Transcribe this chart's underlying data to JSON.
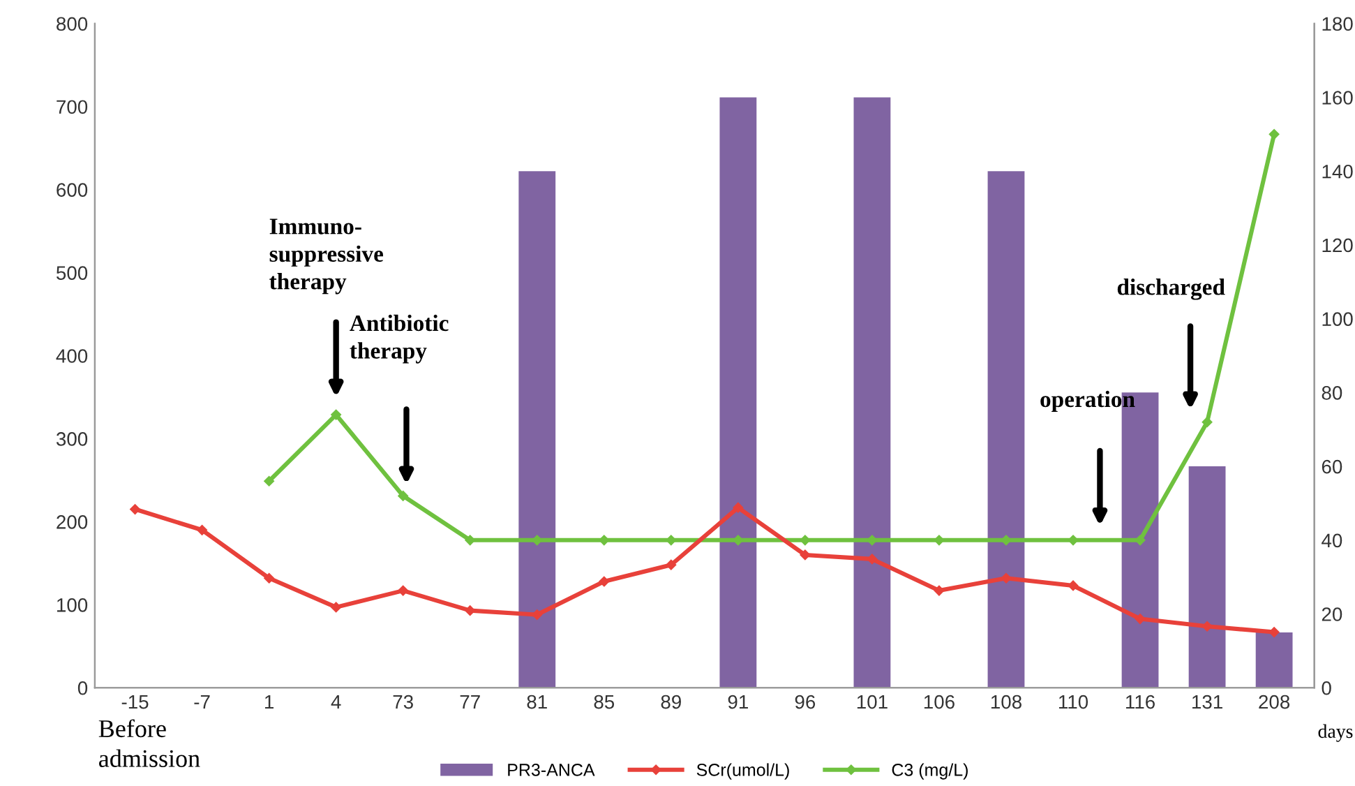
{
  "chart_data": {
    "type": "bar",
    "categories": [
      "-15",
      "-7",
      "1",
      "4",
      "73",
      "77",
      "81",
      "85",
      "89",
      "91",
      "96",
      "101",
      "106",
      "108",
      "110",
      "116",
      "131",
      "208"
    ],
    "xlabel": "days",
    "series": [
      {
        "name": "PR3-ANCA",
        "axis": "y2",
        "color": "#8064a2",
        "values": [
          null,
          null,
          null,
          null,
          null,
          null,
          140,
          null,
          null,
          160,
          null,
          160,
          null,
          140,
          null,
          80,
          60,
          15
        ]
      },
      {
        "name": "SCr(umol/L)",
        "type": "line",
        "color": "#e8413a",
        "values": [
          215,
          190,
          132,
          97,
          117,
          93,
          88,
          128,
          148,
          217,
          160,
          155,
          117,
          132,
          123,
          83,
          74,
          67
        ]
      },
      {
        "name": "C3 (mg/L)",
        "type": "line",
        "axis": "y2",
        "color": "#6fc13f",
        "values": [
          null,
          null,
          56,
          74,
          52,
          40,
          40,
          40,
          40,
          40,
          40,
          40,
          40,
          40,
          40,
          40,
          72,
          150
        ]
      }
    ],
    "ylim": [
      0,
      800
    ],
    "yticks": [
      0,
      100,
      200,
      300,
      400,
      500,
      600,
      700,
      800
    ],
    "y2lim": [
      0,
      180
    ],
    "y2ticks": [
      0,
      20,
      40,
      60,
      80,
      100,
      120,
      140,
      160,
      180
    ],
    "annotations": [
      "Immuno-\nsuppressive\ntherapy",
      "Antibiotic\ntherapy",
      "operation",
      "discharged",
      "Before\nadmission"
    ],
    "grid": false,
    "legend": "bottom",
    "marker": "diamond",
    "line_style": "solid"
  }
}
